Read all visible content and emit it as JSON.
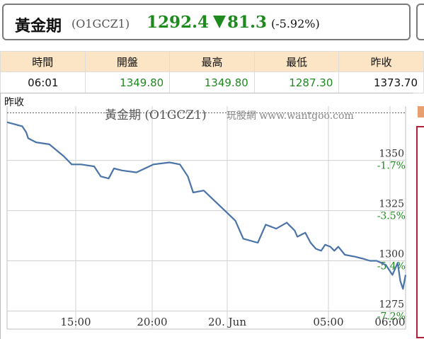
{
  "header": {
    "name": "黃金期",
    "code": "(O1GCZ1)",
    "price": "1292.4",
    "change": "81.3",
    "change_pct": "(-5.92%)",
    "direction": "down"
  },
  "quote_table": {
    "headers": [
      "時間",
      "開盤",
      "最高",
      "最低",
      "昨收"
    ],
    "values": [
      "06:01",
      "1349.80",
      "1349.80",
      "1287.30",
      "1373.70"
    ]
  },
  "colors": {
    "up_down_green": "#1e8a1e",
    "header_bg": "#fce5c4",
    "line": "#4a74a8",
    "grid": "#c8c8c8"
  },
  "chart_data": {
    "type": "line",
    "prev_close_label": "昨收",
    "title": "黃金期 (O1GCZ1)",
    "watermark": "玩股網 www.wantgoo.com",
    "x_ticks": [
      "15:00",
      "20:00",
      "20. Jun",
      "05:00",
      "06:00"
    ],
    "y_ticks": [
      {
        "price": "1350",
        "pct": "-1.7%"
      },
      {
        "price": "1325",
        "pct": "-3.5%"
      },
      {
        "price": "1300",
        "pct": "-5.4%"
      },
      {
        "price": "1275",
        "pct": "-7.2%"
      }
    ],
    "ylim": [
      1266,
      1377
    ],
    "prev_close": 1373.7,
    "x": [
      0.0,
      1.15,
      1.45,
      1.6,
      2.2,
      3.2,
      4.3,
      4.9,
      5.6,
      6.6,
      7.1,
      7.7,
      8.1,
      8.7,
      9.8,
      11.1,
      12.3,
      13.1,
      13.7,
      14.1,
      14.9,
      16.5,
      17.3,
      17.9,
      19.0,
      19.6,
      20.4,
      21.2,
      21.5,
      21.8,
      22.0,
      22.3,
      22.6,
      23.0,
      23.4,
      23.8,
      24.1,
      24.5,
      24.8,
      25.1,
      25.6,
      26.4,
      27.0,
      27.5,
      28.0,
      28.7,
      29.2,
      29.6,
      29.8,
      30.0,
      30.2
    ],
    "y": [
      1369,
      1367,
      1364,
      1361,
      1359,
      1358,
      1352,
      1348,
      1348,
      1347,
      1342,
      1341,
      1346,
      1345,
      1344,
      1348,
      1349,
      1348,
      1342,
      1334,
      1335,
      1325,
      1320,
      1311,
      1309,
      1318,
      1316,
      1319,
      1317,
      1315,
      1312,
      1313,
      1314,
      1309,
      1306,
      1305,
      1308,
      1307,
      1305,
      1307,
      1303,
      1302,
      1301,
      1300,
      1300,
      1298,
      1293,
      1299,
      1290,
      1286,
      1293
    ],
    "series": [
      {
        "values_ref": "y"
      }
    ]
  }
}
